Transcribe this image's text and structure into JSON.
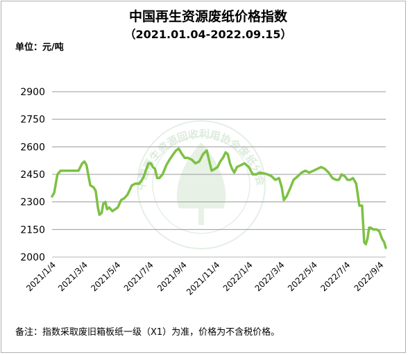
{
  "chart_data": {
    "type": "line",
    "title": "中国再生资源废纸价格指数",
    "subtitle": "（2021.01.04-2022.09.15）",
    "unit_label": "单位：元/吨",
    "note": "备注：指数采取废旧箱板纸一级（X1）为准，价格为不含税价格。",
    "watermark": "中国再生资源回收利用协会废纸分会",
    "xlabel": "",
    "ylabel": "",
    "ylim": [
      2000,
      2900
    ],
    "yticks": [
      2000,
      2150,
      2300,
      2450,
      2600,
      2750,
      2900
    ],
    "x_range": [
      "2021-01-04",
      "2022-09-15"
    ],
    "xticks": [
      {
        "label": "2021/1/4",
        "date": "2021-01-04"
      },
      {
        "label": "2021/3/4",
        "date": "2021-03-04"
      },
      {
        "label": "2021/5/4",
        "date": "2021-05-04"
      },
      {
        "label": "2021/7/4",
        "date": "2021-07-04"
      },
      {
        "label": "2021/9/4",
        "date": "2021-09-04"
      },
      {
        "label": "2021/11/4",
        "date": "2021-11-04"
      },
      {
        "label": "2022/1/4",
        "date": "2022-01-04"
      },
      {
        "label": "2022/3/4",
        "date": "2022-03-04"
      },
      {
        "label": "2022/5/4",
        "date": "2022-05-04"
      },
      {
        "label": "2022/7/4",
        "date": "2022-07-04"
      },
      {
        "label": "2022/9/4",
        "date": "2022-09-04"
      }
    ],
    "grid": true,
    "line_color": "#7cc143",
    "series": [
      {
        "name": "",
        "x": [
          "2021-01-04",
          "2021-01-08",
          "2021-01-14",
          "2021-01-20",
          "2021-01-27",
          "2021-02-10",
          "2021-02-22",
          "2021-03-01",
          "2021-03-05",
          "2021-03-09",
          "2021-03-12",
          "2021-03-16",
          "2021-03-22",
          "2021-03-26",
          "2021-03-30",
          "2021-04-02",
          "2021-04-06",
          "2021-04-09",
          "2021-04-13",
          "2021-04-16",
          "2021-04-20",
          "2021-04-26",
          "2021-05-06",
          "2021-05-12",
          "2021-05-18",
          "2021-05-24",
          "2021-06-01",
          "2021-06-08",
          "2021-06-15",
          "2021-06-22",
          "2021-06-28",
          "2021-07-02",
          "2021-07-06",
          "2021-07-10",
          "2021-07-14",
          "2021-07-18",
          "2021-07-22",
          "2021-07-28",
          "2021-08-04",
          "2021-08-10",
          "2021-08-17",
          "2021-08-22",
          "2021-08-27",
          "2021-09-02",
          "2021-09-07",
          "2021-09-13",
          "2021-09-20",
          "2021-09-27",
          "2021-10-04",
          "2021-10-11",
          "2021-10-18",
          "2021-10-22",
          "2021-10-27",
          "2021-11-02",
          "2021-11-07",
          "2021-11-12",
          "2021-11-17",
          "2021-11-22",
          "2021-11-26",
          "2021-11-30",
          "2021-12-04",
          "2021-12-08",
          "2021-12-13",
          "2021-12-20",
          "2021-12-27",
          "2022-01-04",
          "2022-01-11",
          "2022-01-18",
          "2022-01-25",
          "2022-02-08",
          "2022-02-15",
          "2022-02-22",
          "2022-03-01",
          "2022-03-06",
          "2022-03-10",
          "2022-03-15",
          "2022-03-21",
          "2022-03-28",
          "2022-04-05",
          "2022-04-12",
          "2022-04-19",
          "2022-04-26",
          "2022-05-04",
          "2022-05-11",
          "2022-05-18",
          "2022-05-25",
          "2022-06-01",
          "2022-06-08",
          "2022-06-15",
          "2022-06-20",
          "2022-06-25",
          "2022-07-01",
          "2022-07-06",
          "2022-07-11",
          "2022-07-16",
          "2022-07-22",
          "2022-07-28",
          "2022-08-02",
          "2022-08-06",
          "2022-08-09",
          "2022-08-12",
          "2022-08-15",
          "2022-08-18",
          "2022-08-23",
          "2022-08-29",
          "2022-09-03",
          "2022-09-08",
          "2022-09-12",
          "2022-09-15"
        ],
        "values": [
          2330,
          2350,
          2450,
          2470,
          2470,
          2470,
          2470,
          2510,
          2520,
          2500,
          2450,
          2390,
          2380,
          2360,
          2270,
          2230,
          2240,
          2290,
          2300,
          2260,
          2270,
          2250,
          2270,
          2310,
          2320,
          2340,
          2390,
          2400,
          2400,
          2430,
          2480,
          2510,
          2510,
          2490,
          2480,
          2430,
          2430,
          2450,
          2500,
          2530,
          2560,
          2580,
          2590,
          2560,
          2540,
          2540,
          2530,
          2510,
          2520,
          2560,
          2580,
          2530,
          2470,
          2480,
          2490,
          2520,
          2540,
          2570,
          2560,
          2510,
          2480,
          2460,
          2490,
          2500,
          2510,
          2490,
          2450,
          2450,
          2460,
          2450,
          2440,
          2420,
          2430,
          2380,
          2310,
          2330,
          2370,
          2420,
          2440,
          2460,
          2470,
          2460,
          2470,
          2480,
          2490,
          2480,
          2460,
          2430,
          2420,
          2420,
          2450,
          2440,
          2420,
          2420,
          2430,
          2400,
          2280,
          2280,
          2080,
          2070,
          2100,
          2160,
          2160,
          2150,
          2150,
          2140,
          2100,
          2080,
          2050
        ]
      }
    ]
  }
}
